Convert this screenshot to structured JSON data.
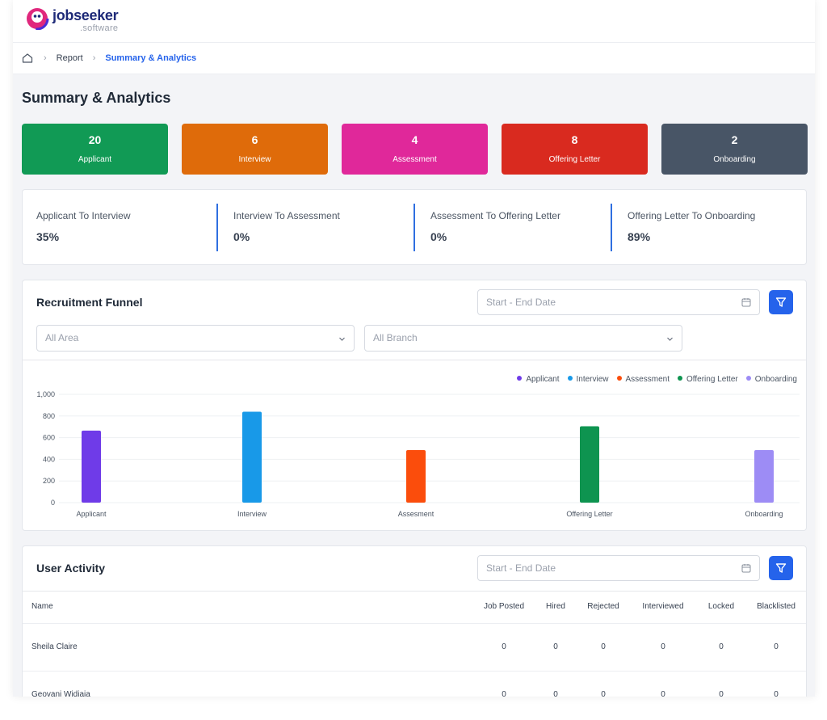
{
  "brand": {
    "name": "jobseeker",
    "sub": ".software"
  },
  "breadcrumb": {
    "items": [
      "Report",
      "Summary & Analytics"
    ]
  },
  "page": {
    "title": "Summary & Analytics"
  },
  "stats": [
    {
      "value": "20",
      "label": "Applicant",
      "color": "#119a55"
    },
    {
      "value": "6",
      "label": "Interview",
      "color": "#df6b0a"
    },
    {
      "value": "4",
      "label": "Assessment",
      "color": "#e0289a"
    },
    {
      "value": "8",
      "label": "Offering Letter",
      "color": "#d92a1f"
    },
    {
      "value": "2",
      "label": "Onboarding",
      "color": "#485566"
    }
  ],
  "conversions": [
    {
      "title": "Applicant To Interview",
      "value": "35%"
    },
    {
      "title": "Interview To Assessment",
      "value": "0%"
    },
    {
      "title": "Assessment To Offering Letter",
      "value": "0%"
    },
    {
      "title": "Offering Letter To Onboarding",
      "value": "89%"
    }
  ],
  "funnel": {
    "title": "Recruitment Funnel",
    "date_placeholder": "Start - End Date",
    "area_select": "All Area",
    "branch_select": "All Branch"
  },
  "chart_data": {
    "type": "bar",
    "categories": [
      "Applicant",
      "Interview",
      "Assesment",
      "Offering Letter",
      "Onboarding"
    ],
    "values": [
      665,
      840,
      485,
      705,
      485
    ],
    "colors": [
      "#6f3be8",
      "#1899e8",
      "#fb4d0c",
      "#0e9450",
      "#9d8cf5"
    ],
    "legend": [
      "Applicant",
      "Interview",
      "Assessment",
      "Offering Letter",
      "Onboarding"
    ],
    "yticks": [
      "0",
      "200",
      "400",
      "600",
      "800",
      "1,000"
    ],
    "ylim": [
      0,
      1000
    ],
    "grid": true,
    "legend_position": "top-right"
  },
  "activity": {
    "title": "User Activity",
    "date_placeholder": "Start - End Date",
    "columns": [
      "Name",
      "Job Posted",
      "Hired",
      "Rejected",
      "Interviewed",
      "Locked",
      "Blacklisted"
    ],
    "rows": [
      [
        "Sheila Claire",
        "0",
        "0",
        "0",
        "0",
        "0",
        "0"
      ],
      [
        "Geovani Widjaja",
        "0",
        "0",
        "0",
        "0",
        "0",
        "0"
      ]
    ]
  }
}
